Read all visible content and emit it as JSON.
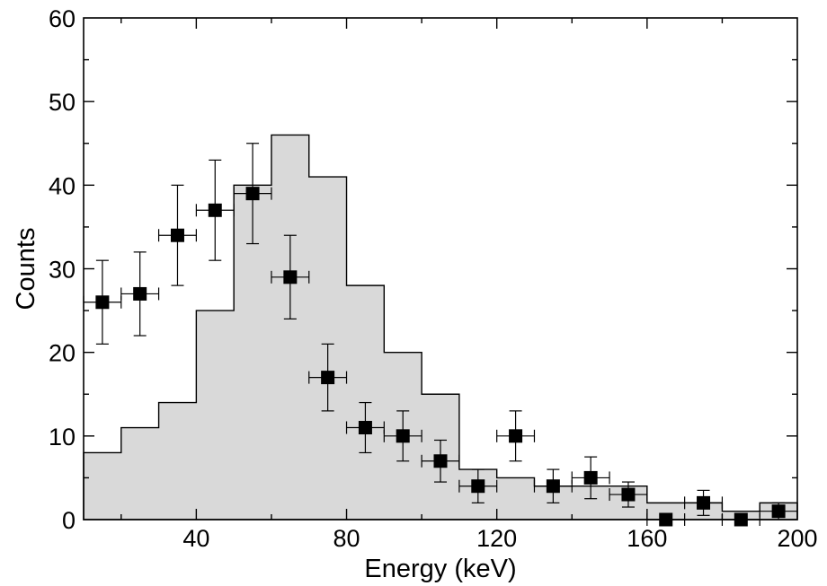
{
  "chart_data": {
    "type": "histogram-with-points",
    "xlabel": "Energy (keV)",
    "ylabel": "Counts",
    "xlim": [
      10,
      200
    ],
    "ylim": [
      0,
      60
    ],
    "x_ticks": [
      40,
      80,
      120,
      160,
      200
    ],
    "y_ticks": [
      0,
      10,
      20,
      30,
      40,
      50,
      60
    ],
    "grid": false,
    "histogram": {
      "fill": "#d9d9d9",
      "stroke": "#000000",
      "bin_edges": [
        10,
        20,
        30,
        40,
        50,
        60,
        70,
        80,
        90,
        100,
        110,
        120,
        130,
        140,
        150,
        160,
        170,
        180,
        190,
        200
      ],
      "values": [
        8,
        11,
        14,
        25,
        40,
        46,
        41,
        28,
        20,
        15,
        6,
        5,
        4,
        4,
        4,
        2,
        2,
        1,
        2
      ]
    },
    "points": {
      "marker": "square",
      "color": "#000000",
      "x": [
        15,
        25,
        35,
        45,
        55,
        65,
        75,
        85,
        95,
        105,
        115,
        125,
        135,
        145,
        155,
        165,
        175,
        185,
        195
      ],
      "x_err": 5,
      "y": [
        26,
        27,
        34,
        37,
        39,
        29,
        17,
        11,
        10,
        7,
        4,
        10,
        4,
        5,
        3,
        0,
        2,
        0,
        1
      ],
      "y_low": [
        21,
        22,
        28,
        31,
        33,
        24,
        13,
        8,
        7,
        4.5,
        2,
        7,
        2,
        2.5,
        1.5,
        0,
        0.5,
        0,
        0
      ],
      "y_high": [
        31,
        32,
        40,
        43,
        45,
        34,
        21,
        14,
        13,
        9.5,
        6,
        13,
        6,
        7.5,
        4.5,
        0,
        3.5,
        0,
        2
      ]
    }
  }
}
